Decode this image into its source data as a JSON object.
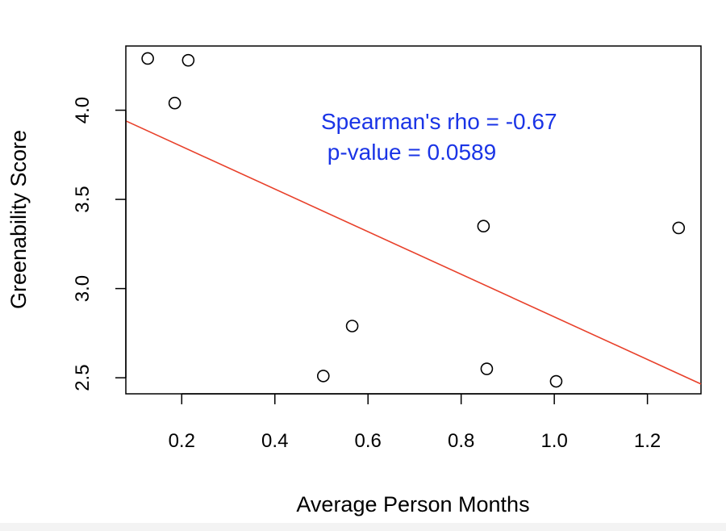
{
  "chart_data": {
    "type": "scatter",
    "xlabel": "Average Person Months",
    "ylabel": "Greenability Score",
    "xlim": [
      0.08,
      1.315
    ],
    "ylim": [
      2.41,
      4.36
    ],
    "xticks": [
      0.2,
      0.4,
      0.6,
      0.8,
      1.0,
      1.2
    ],
    "xtick_labels": [
      "0.2",
      "0.4",
      "0.6",
      "0.8",
      "1.0",
      "1.2"
    ],
    "yticks": [
      2.5,
      3.0,
      3.5,
      4.0
    ],
    "ytick_labels": [
      "2.5",
      "3.0",
      "3.5",
      "4.0"
    ],
    "points": [
      {
        "x": 0.127,
        "y": 4.29
      },
      {
        "x": 0.185,
        "y": 4.04
      },
      {
        "x": 0.214,
        "y": 4.28
      },
      {
        "x": 0.504,
        "y": 2.51
      },
      {
        "x": 0.566,
        "y": 2.79
      },
      {
        "x": 0.848,
        "y": 3.35
      },
      {
        "x": 0.855,
        "y": 2.55
      },
      {
        "x": 1.004,
        "y": 2.48
      },
      {
        "x": 1.267,
        "y": 3.34
      }
    ],
    "trendline": {
      "x": [
        0.08,
        1.315
      ],
      "y": [
        3.94,
        2.465
      ],
      "color": "#e8402a"
    },
    "annotations": [
      "Spearman's rho = -0.67",
      " p-value = 0.0589"
    ],
    "annotation_color": "#1a34e6",
    "grid": false,
    "legend": "none"
  }
}
